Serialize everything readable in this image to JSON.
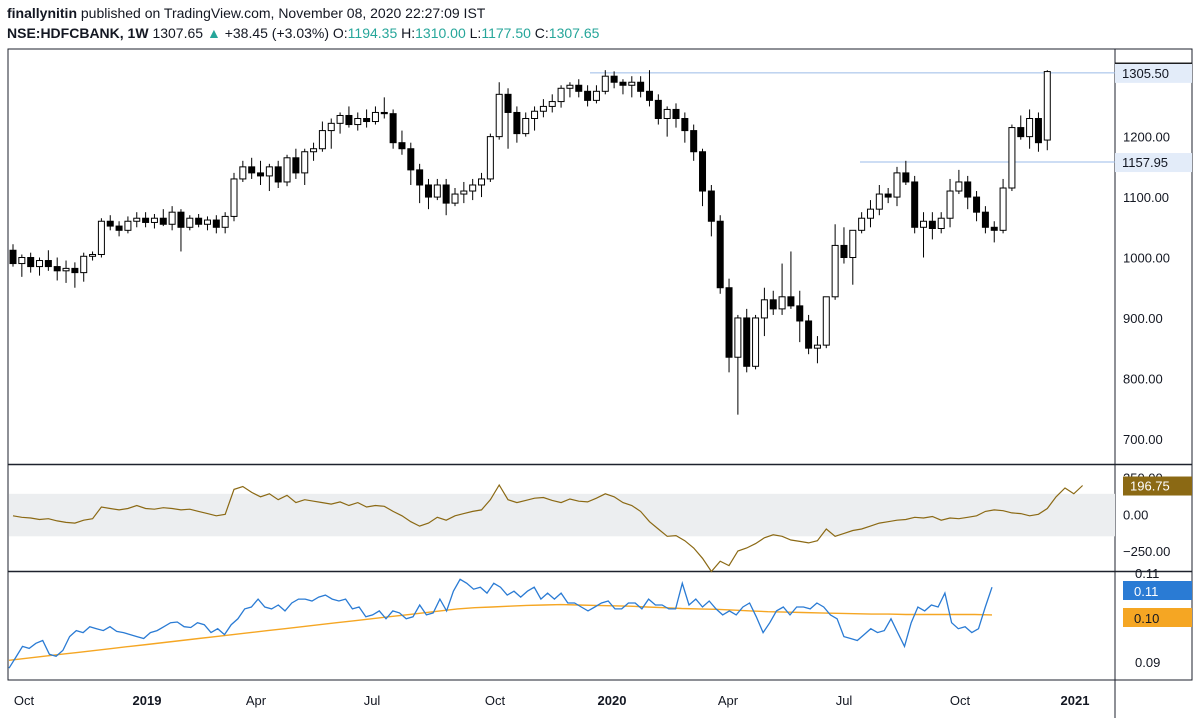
{
  "header": {
    "author": "finallynitin",
    "published_text": "published on TradingView.com, November 08, 2020 22:27:09 IST",
    "symbol": "NSE:HDFCBANK, 1W",
    "last": "1307.65",
    "arrow": "▲",
    "change": "+38.45 (+3.03%)",
    "o_label": "O:",
    "o_value": "1194.35",
    "h_label": "H:",
    "h_value": "1310.00",
    "l_label": "L:",
    "l_value": "1177.50",
    "c_label": "C:",
    "c_value": "1307.65"
  },
  "colors": {
    "up_body": "#ffffff",
    "down_body": "#000000",
    "cci_line": "#8b6914",
    "fast_line": "#2a7bd4",
    "slow_line": "#f5a623",
    "band_fill": "#eceef0"
  },
  "chart_data": [
    {
      "type": "candlestick",
      "name": "price",
      "y_ticks": [
        "700.00",
        "800.00",
        "900.00",
        "1000.00",
        "1100.00",
        "1200.00"
      ],
      "ylim": [
        660,
        1345
      ],
      "x_labels": [
        "Oct",
        "2019",
        "Apr",
        "Jul",
        "Oct",
        "2020",
        "Apr",
        "Jul",
        "Oct",
        "2021"
      ],
      "price_labels": [
        "1307.65",
        "1305.50",
        "1157.95"
      ],
      "levels": [
        1305.5,
        1157.95
      ],
      "ohlc": [
        [
          1012,
          1022,
          985,
          990
        ],
        [
          990,
          1005,
          968,
          1000
        ],
        [
          1000,
          1008,
          975,
          985
        ],
        [
          985,
          1000,
          970,
          995
        ],
        [
          995,
          1012,
          978,
          985
        ],
        [
          985,
          1000,
          962,
          978
        ],
        [
          978,
          995,
          958,
          982
        ],
        [
          982,
          992,
          950,
          975
        ],
        [
          975,
          1008,
          960,
          1002
        ],
        [
          1002,
          1010,
          995,
          1005
        ],
        [
          1005,
          1065,
          1000,
          1060
        ],
        [
          1060,
          1070,
          1045,
          1052
        ],
        [
          1052,
          1060,
          1035,
          1045
        ],
        [
          1045,
          1068,
          1040,
          1060
        ],
        [
          1060,
          1075,
          1050,
          1065
        ],
        [
          1065,
          1075,
          1050,
          1058
        ],
        [
          1058,
          1072,
          1048,
          1065
        ],
        [
          1065,
          1080,
          1052,
          1055
        ],
        [
          1055,
          1085,
          1045,
          1075
        ],
        [
          1075,
          1080,
          1010,
          1050
        ],
        [
          1050,
          1070,
          1045,
          1065
        ],
        [
          1065,
          1072,
          1050,
          1055
        ],
        [
          1055,
          1068,
          1045,
          1062
        ],
        [
          1062,
          1070,
          1040,
          1050
        ],
        [
          1050,
          1075,
          1040,
          1068
        ],
        [
          1068,
          1140,
          1060,
          1130
        ],
        [
          1130,
          1160,
          1125,
          1150
        ],
        [
          1150,
          1165,
          1130,
          1140
        ],
        [
          1140,
          1160,
          1120,
          1135
        ],
        [
          1135,
          1155,
          1110,
          1150
        ],
        [
          1150,
          1160,
          1115,
          1125
        ],
        [
          1125,
          1170,
          1118,
          1165
        ],
        [
          1165,
          1180,
          1130,
          1140
        ],
        [
          1140,
          1180,
          1120,
          1175
        ],
        [
          1175,
          1190,
          1160,
          1180
        ],
        [
          1180,
          1225,
          1175,
          1210
        ],
        [
          1210,
          1230,
          1180,
          1222
        ],
        [
          1222,
          1240,
          1205,
          1235
        ],
        [
          1235,
          1250,
          1215,
          1220
        ],
        [
          1220,
          1240,
          1210,
          1230
        ],
        [
          1230,
          1245,
          1215,
          1225
        ],
        [
          1225,
          1250,
          1220,
          1240
        ],
        [
          1240,
          1265,
          1230,
          1238
        ],
        [
          1238,
          1245,
          1180,
          1190
        ],
        [
          1190,
          1210,
          1170,
          1180
        ],
        [
          1180,
          1190,
          1120,
          1145
        ],
        [
          1145,
          1155,
          1090,
          1120
        ],
        [
          1120,
          1130,
          1080,
          1100
        ],
        [
          1100,
          1130,
          1095,
          1120
        ],
        [
          1120,
          1130,
          1070,
          1090
        ],
        [
          1090,
          1115,
          1085,
          1105
        ],
        [
          1105,
          1125,
          1090,
          1110
        ],
        [
          1110,
          1130,
          1095,
          1120
        ],
        [
          1120,
          1140,
          1100,
          1130
        ],
        [
          1130,
          1205,
          1125,
          1200
        ],
        [
          1200,
          1290,
          1195,
          1270
        ],
        [
          1270,
          1280,
          1180,
          1240
        ],
        [
          1240,
          1250,
          1190,
          1205
        ],
        [
          1205,
          1240,
          1200,
          1230
        ],
        [
          1230,
          1250,
          1210,
          1242
        ],
        [
          1242,
          1262,
          1232,
          1250
        ],
        [
          1250,
          1270,
          1240,
          1258
        ],
        [
          1258,
          1285,
          1248,
          1280
        ],
        [
          1280,
          1290,
          1265,
          1285
        ],
        [
          1285,
          1295,
          1265,
          1275
        ],
        [
          1275,
          1285,
          1250,
          1260
        ],
        [
          1260,
          1285,
          1255,
          1275
        ],
        [
          1275,
          1310,
          1270,
          1300
        ],
        [
          1300,
          1308,
          1280,
          1290
        ],
        [
          1290,
          1295,
          1270,
          1285
        ],
        [
          1285,
          1300,
          1265,
          1290
        ],
        [
          1290,
          1300,
          1265,
          1275
        ],
        [
          1275,
          1310,
          1250,
          1260
        ],
        [
          1260,
          1270,
          1220,
          1230
        ],
        [
          1230,
          1250,
          1200,
          1245
        ],
        [
          1245,
          1255,
          1215,
          1230
        ],
        [
          1230,
          1240,
          1190,
          1210
        ],
        [
          1210,
          1220,
          1160,
          1175
        ],
        [
          1175,
          1180,
          1085,
          1110
        ],
        [
          1110,
          1120,
          1035,
          1060
        ],
        [
          1060,
          1070,
          940,
          950
        ],
        [
          950,
          965,
          810,
          835
        ],
        [
          835,
          905,
          740,
          900
        ],
        [
          900,
          915,
          810,
          820
        ],
        [
          820,
          905,
          815,
          900
        ],
        [
          900,
          950,
          870,
          930
        ],
        [
          930,
          945,
          905,
          915
        ],
        [
          915,
          990,
          905,
          935
        ],
        [
          935,
          1010,
          915,
          920
        ],
        [
          920,
          945,
          860,
          895
        ],
        [
          895,
          905,
          840,
          850
        ],
        [
          850,
          870,
          825,
          855
        ],
        [
          855,
          935,
          850,
          935
        ],
        [
          935,
          1055,
          930,
          1020
        ],
        [
          1020,
          1050,
          990,
          1000
        ],
        [
          1000,
          1040,
          955,
          1045
        ],
        [
          1045,
          1075,
          1040,
          1065
        ],
        [
          1065,
          1095,
          1050,
          1080
        ],
        [
          1080,
          1120,
          1070,
          1105
        ],
        [
          1105,
          1115,
          1090,
          1100
        ],
        [
          1100,
          1150,
          1085,
          1140
        ],
        [
          1140,
          1160,
          1120,
          1125
        ],
        [
          1125,
          1135,
          1040,
          1050
        ],
        [
          1050,
          1075,
          1000,
          1060
        ],
        [
          1060,
          1075,
          1030,
          1048
        ],
        [
          1048,
          1075,
          1040,
          1065
        ],
        [
          1065,
          1130,
          1050,
          1110
        ],
        [
          1110,
          1145,
          1105,
          1125
        ],
        [
          1125,
          1135,
          1080,
          1100
        ],
        [
          1100,
          1110,
          1060,
          1075
        ],
        [
          1075,
          1085,
          1040,
          1050
        ],
        [
          1050,
          1060,
          1025,
          1045
        ],
        [
          1045,
          1130,
          1040,
          1115
        ],
        [
          1115,
          1220,
          1110,
          1215
        ],
        [
          1215,
          1235,
          1195,
          1200
        ],
        [
          1200,
          1245,
          1180,
          1230
        ],
        [
          1230,
          1240,
          1175,
          1190
        ],
        [
          1194.35,
          1310,
          1177.5,
          1307.65
        ]
      ]
    },
    {
      "type": "line",
      "name": "oscillator",
      "y_ticks": [
        "250.00",
        "0.00",
        "−250.00"
      ],
      "ylim": [
        -380,
        330
      ],
      "band": [
        -150,
        140
      ],
      "value_label": "196.75",
      "values": [
        -10,
        -20,
        -25,
        -35,
        -30,
        -45,
        -55,
        -60,
        -40,
        -30,
        50,
        40,
        30,
        40,
        60,
        40,
        35,
        45,
        40,
        30,
        35,
        20,
        5,
        -10,
        0,
        170,
        190,
        150,
        120,
        140,
        100,
        130,
        80,
        100,
        90,
        80,
        70,
        85,
        60,
        80,
        50,
        60,
        55,
        20,
        -10,
        -50,
        -80,
        -60,
        -20,
        -40,
        -10,
        5,
        20,
        30,
        100,
        200,
        100,
        80,
        95,
        110,
        115,
        95,
        80,
        105,
        90,
        85,
        110,
        140,
        120,
        80,
        60,
        20,
        -50,
        -100,
        -150,
        -145,
        -180,
        -230,
        -300,
        -390,
        -320,
        -350,
        -250,
        -230,
        -200,
        -160,
        -140,
        -150,
        -175,
        -185,
        -195,
        -180,
        -100,
        -150,
        -130,
        -110,
        -100,
        -80,
        -60,
        -50,
        -40,
        -35,
        -20,
        -25,
        -15,
        -40,
        -25,
        -30,
        -20,
        -10,
        20,
        30,
        25,
        10,
        5,
        -10,
        0,
        40,
        120,
        180,
        140,
        196.75
      ]
    },
    {
      "type": "line",
      "name": "ratio",
      "y_ticks": [
        "0.11",
        "0.09"
      ],
      "ylim": [
        0.0855,
        0.1126
      ],
      "value_labels": [
        "0.11",
        "0.10"
      ],
      "fast": [
        0.0885,
        0.0912,
        0.094,
        0.0935,
        0.0948,
        0.0955,
        0.092,
        0.0915,
        0.093,
        0.0965,
        0.098,
        0.0975,
        0.099,
        0.0985,
        0.098,
        0.099,
        0.0978,
        0.0975,
        0.097,
        0.0965,
        0.096,
        0.0975,
        0.098,
        0.099,
        0.1,
        0.1002,
        0.099,
        0.0988,
        0.1,
        0.0995,
        0.0975,
        0.0985,
        0.097,
        0.0995,
        0.101,
        0.1035,
        0.104,
        0.106,
        0.104,
        0.1035,
        0.1045,
        0.103,
        0.105,
        0.106,
        0.106,
        0.1055,
        0.1065,
        0.107,
        0.106,
        0.1055,
        0.106,
        0.1035,
        0.104,
        0.1015,
        0.102,
        0.103,
        0.101,
        0.103,
        0.1025,
        0.101,
        0.1015,
        0.1045,
        0.102,
        0.1025,
        0.106,
        0.103,
        0.108,
        0.111,
        0.11,
        0.1085,
        0.109,
        0.1075,
        0.11,
        0.109,
        0.107,
        0.108,
        0.1065,
        0.108,
        0.109,
        0.106,
        0.1075,
        0.106,
        0.1075,
        0.105,
        0.105,
        0.104,
        0.103,
        0.104,
        0.105,
        0.1055,
        0.1035,
        0.1035,
        0.105,
        0.105,
        0.1035,
        0.106,
        0.1045,
        0.1045,
        0.1035,
        0.1035,
        0.11,
        0.1045,
        0.106,
        0.104,
        0.1055,
        0.1035,
        0.102,
        0.103,
        0.102,
        0.104,
        0.105,
        0.1015,
        0.0975,
        0.1,
        0.103,
        0.104,
        0.102,
        0.104,
        0.104,
        0.1035,
        0.105,
        0.104,
        0.102,
        0.101,
        0.0965,
        0.096,
        0.0955,
        0.097,
        0.0985,
        0.0975,
        0.098,
        0.101,
        0.0975,
        0.094,
        0.1,
        0.104,
        0.103,
        0.1045,
        0.104,
        0.1075,
        0.1,
        0.0985,
        0.099,
        0.0975,
        0.0985,
        0.104,
        0.109
      ],
      "slow": [
        0.0905,
        0.091,
        0.0915,
        0.092,
        0.0925,
        0.093,
        0.0935,
        0.094,
        0.0945,
        0.095,
        0.0955,
        0.096,
        0.0965,
        0.097,
        0.0975,
        0.098,
        0.0985,
        0.099,
        0.0995,
        0.1,
        0.1005,
        0.101,
        0.1015,
        0.102,
        0.1025,
        0.103,
        0.1035,
        0.1038,
        0.104,
        0.1042,
        0.1044,
        0.1045,
        0.1046,
        0.1045,
        0.1044,
        0.1043,
        0.1042,
        0.104,
        0.1038,
        0.1036,
        0.1035,
        0.1034,
        0.1032,
        0.103,
        0.1028,
        0.1027,
        0.1026,
        0.1025,
        0.1024,
        0.1023,
        0.1022,
        0.1022,
        0.1021,
        0.1021,
        0.1021,
        0.1021,
        0.1021,
        0.102
      ]
    }
  ]
}
